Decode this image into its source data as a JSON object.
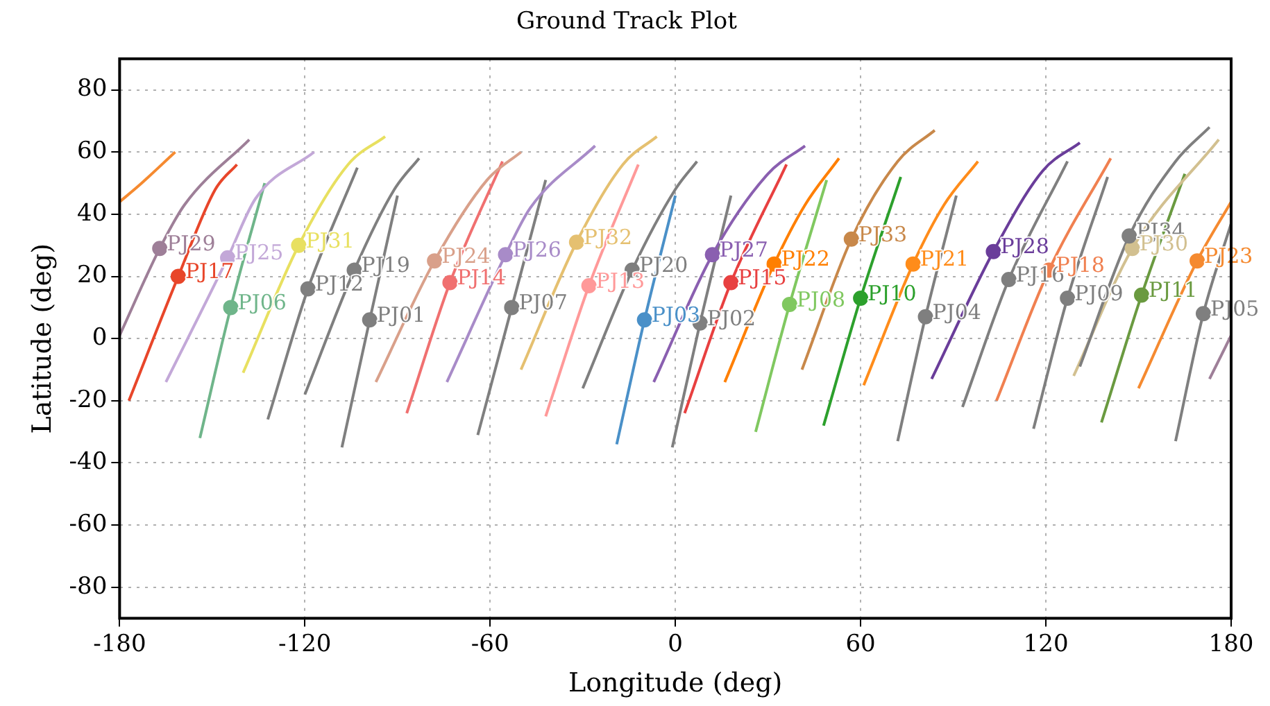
{
  "chart_data": {
    "type": "line",
    "title": "Ground Track Plot",
    "xlabel": "Longitude (deg)",
    "ylabel": "Latitude (deg)",
    "xlim": [
      -180,
      180
    ],
    "xticks": [
      -180,
      -120,
      -60,
      0,
      60,
      120,
      180
    ],
    "ylim": [
      -90,
      90
    ],
    "yticks": [
      -80,
      -60,
      -40,
      -20,
      0,
      20,
      40,
      60,
      80
    ],
    "grid": true,
    "series": [
      {
        "color": "#f58a30",
        "x": [
          -180,
          -174,
          -162
        ],
        "values": [
          44,
          49,
          60
        ]
      },
      {
        "color": "#9e7f98",
        "x": [
          173,
          180
        ],
        "values": [
          -13,
          1
        ]
      },
      {
        "color": "#9e7f98",
        "x": [
          -180,
          -167,
          -159,
          -138
        ],
        "values": [
          1,
          29,
          43,
          64
        ]
      },
      {
        "color": "#e8462a",
        "x": [
          -177,
          -161,
          -149,
          -142
        ],
        "values": [
          -20,
          20,
          48,
          56
        ]
      },
      {
        "color": "#c3a8d8",
        "x": [
          -165,
          -145,
          -136,
          -117
        ],
        "values": [
          -14,
          26,
          45,
          60
        ]
      },
      {
        "color": "#6fb58a",
        "x": [
          -154,
          -144,
          -133
        ],
        "values": [
          -32,
          10,
          50
        ]
      },
      {
        "color": "#e8e060",
        "x": [
          -140,
          -122,
          -106,
          -94
        ],
        "values": [
          -11,
          30,
          56,
          65
        ]
      },
      {
        "color": "#7f7f7f",
        "x": [
          -132,
          -119,
          -103
        ],
        "values": [
          -26,
          16,
          55
        ]
      },
      {
        "color": "#7f7f7f",
        "x": [
          -120,
          -104,
          -91,
          -83
        ],
        "values": [
          -18,
          22,
          48,
          58
        ]
      },
      {
        "color": "#7f7f7f",
        "x": [
          -108,
          -99,
          -90
        ],
        "values": [
          -35,
          6,
          46
        ]
      },
      {
        "color": "#d9a08a",
        "x": [
          -97,
          -78,
          -61,
          -50
        ],
        "values": [
          -14,
          25,
          51,
          60
        ]
      },
      {
        "color": "#f07070",
        "x": [
          -87,
          -73,
          -56
        ],
        "values": [
          -24,
          18,
          57
        ]
      },
      {
        "color": "#a88bc8",
        "x": [
          -74,
          -55,
          -47,
          -26
        ],
        "values": [
          -14,
          27,
          42,
          62
        ]
      },
      {
        "color": "#7f7f7f",
        "x": [
          -64,
          -53,
          -42
        ],
        "values": [
          -31,
          10,
          51
        ]
      },
      {
        "color": "#e5c070",
        "x": [
          -50,
          -32,
          -17,
          -6
        ],
        "values": [
          -10,
          31,
          56,
          65
        ]
      },
      {
        "color": "#ff9999",
        "x": [
          -42,
          -28,
          -12
        ],
        "values": [
          -25,
          17,
          56
        ]
      },
      {
        "color": "#7f7f7f",
        "x": [
          -30,
          -14,
          0,
          7
        ],
        "values": [
          -16,
          22,
          48,
          57
        ]
      },
      {
        "color": "#4a90c8",
        "x": [
          -19,
          -10,
          0
        ],
        "values": [
          -34,
          6,
          46
        ]
      },
      {
        "color": "#8a5fb0",
        "x": [
          -7,
          12,
          30,
          42
        ],
        "values": [
          -14,
          27,
          53,
          62
        ]
      },
      {
        "color": "#7f7f7f",
        "x": [
          -1,
          8,
          18
        ],
        "values": [
          -35,
          5,
          46
        ]
      },
      {
        "color": "#e84040",
        "x": [
          3,
          18,
          36
        ],
        "values": [
          -24,
          18,
          56
        ]
      },
      {
        "color": "#ff7f00",
        "x": [
          16,
          32,
          42,
          53
        ],
        "values": [
          -14,
          24,
          43,
          58
        ]
      },
      {
        "color": "#80c860",
        "x": [
          26,
          37,
          49
        ],
        "values": [
          -30,
          11,
          51
        ]
      },
      {
        "color": "#c8884a",
        "x": [
          41,
          57,
          72,
          84
        ],
        "values": [
          -10,
          32,
          57,
          67
        ]
      },
      {
        "color": "#2ca02c",
        "x": [
          48,
          60,
          73
        ],
        "values": [
          -28,
          13,
          52
        ]
      },
      {
        "color": "#ff8c1a",
        "x": [
          61,
          77,
          87,
          98
        ],
        "values": [
          -15,
          24,
          43,
          57
        ]
      },
      {
        "color": "#7f7f7f",
        "x": [
          72,
          81,
          91
        ],
        "values": [
          -33,
          7,
          46
        ]
      },
      {
        "color": "#6a3d9a",
        "x": [
          83,
          103,
          119,
          131
        ],
        "values": [
          -13,
          28,
          54,
          63
        ]
      },
      {
        "color": "#7f7f7f",
        "x": [
          93,
          108,
          127
        ],
        "values": [
          -22,
          19,
          57
        ]
      },
      {
        "color": "#f08050",
        "x": [
          104,
          121,
          141
        ],
        "values": [
          -20,
          22,
          58
        ]
      },
      {
        "color": "#7f7f7f",
        "x": [
          116,
          127,
          140
        ],
        "values": [
          -29,
          13,
          52
        ]
      },
      {
        "color": "#7f7f7f",
        "x": [
          131,
          147,
          162,
          173
        ],
        "values": [
          -9,
          33,
          57,
          68
        ]
      },
      {
        "color": "#d2c090",
        "x": [
          129,
          148,
          176
        ],
        "values": [
          -12,
          29,
          64
        ]
      },
      {
        "color": "#6a9a40",
        "x": [
          138,
          151,
          165
        ],
        "values": [
          -27,
          14,
          53
        ]
      },
      {
        "color": "#f58a30",
        "x": [
          150,
          169,
          180
        ],
        "values": [
          -16,
          25,
          44
        ]
      },
      {
        "color": "#7f7f7f",
        "x": [
          162,
          171,
          180
        ],
        "values": [
          -33,
          8,
          37
        ]
      },
      {
        "type": "scatter",
        "name": "PJ29",
        "color": "#9e7f98",
        "x": [
          -167
        ],
        "values": [
          29
        ]
      },
      {
        "type": "scatter",
        "name": "PJ17",
        "color": "#e8462a",
        "x": [
          -161
        ],
        "values": [
          20
        ]
      },
      {
        "type": "scatter",
        "name": "PJ25",
        "color": "#c3a8d8",
        "x": [
          -145
        ],
        "values": [
          26
        ]
      },
      {
        "type": "scatter",
        "name": "PJ06",
        "color": "#6fb58a",
        "x": [
          -144
        ],
        "values": [
          10
        ]
      },
      {
        "type": "scatter",
        "name": "PJ31",
        "color": "#e8e060",
        "x": [
          -122
        ],
        "values": [
          30
        ]
      },
      {
        "type": "scatter",
        "name": "PJ12",
        "color": "#7f7f7f",
        "x": [
          -119
        ],
        "values": [
          16
        ]
      },
      {
        "type": "scatter",
        "name": "PJ19",
        "color": "#7f7f7f",
        "x": [
          -104
        ],
        "values": [
          22
        ]
      },
      {
        "type": "scatter",
        "name": "PJ01",
        "color": "#7f7f7f",
        "x": [
          -99
        ],
        "values": [
          6
        ]
      },
      {
        "type": "scatter",
        "name": "PJ24",
        "color": "#d9a08a",
        "x": [
          -78
        ],
        "values": [
          25
        ]
      },
      {
        "type": "scatter",
        "name": "PJ14",
        "color": "#f07070",
        "x": [
          -73
        ],
        "values": [
          18
        ]
      },
      {
        "type": "scatter",
        "name": "PJ26",
        "color": "#a88bc8",
        "x": [
          -55
        ],
        "values": [
          27
        ]
      },
      {
        "type": "scatter",
        "name": "PJ07",
        "color": "#7f7f7f",
        "x": [
          -53
        ],
        "values": [
          10
        ]
      },
      {
        "type": "scatter",
        "name": "PJ32",
        "color": "#e5c070",
        "x": [
          -32
        ],
        "values": [
          31
        ]
      },
      {
        "type": "scatter",
        "name": "PJ13",
        "color": "#ff9999",
        "x": [
          -28
        ],
        "values": [
          17
        ]
      },
      {
        "type": "scatter",
        "name": "PJ20",
        "color": "#7f7f7f",
        "x": [
          -14
        ],
        "values": [
          22
        ]
      },
      {
        "type": "scatter",
        "name": "PJ03",
        "color": "#4a90c8",
        "x": [
          -10
        ],
        "values": [
          6
        ]
      },
      {
        "type": "scatter",
        "name": "PJ27",
        "color": "#8a5fb0",
        "x": [
          12
        ],
        "values": [
          27
        ]
      },
      {
        "type": "scatter",
        "name": "PJ02",
        "color": "#7f7f7f",
        "x": [
          8
        ],
        "values": [
          5
        ]
      },
      {
        "type": "scatter",
        "name": "PJ15",
        "color": "#e84040",
        "x": [
          18
        ],
        "values": [
          18
        ]
      },
      {
        "type": "scatter",
        "name": "PJ22",
        "color": "#ff7f00",
        "x": [
          32
        ],
        "values": [
          24
        ]
      },
      {
        "type": "scatter",
        "name": "PJ08",
        "color": "#80c860",
        "x": [
          37
        ],
        "values": [
          11
        ]
      },
      {
        "type": "scatter",
        "name": "PJ33",
        "color": "#c8884a",
        "x": [
          57
        ],
        "values": [
          32
        ]
      },
      {
        "type": "scatter",
        "name": "PJ10",
        "color": "#2ca02c",
        "x": [
          60
        ],
        "values": [
          13
        ]
      },
      {
        "type": "scatter",
        "name": "PJ21",
        "color": "#ff8c1a",
        "x": [
          77
        ],
        "values": [
          24
        ]
      },
      {
        "type": "scatter",
        "name": "PJ04",
        "color": "#7f7f7f",
        "x": [
          81
        ],
        "values": [
          7
        ]
      },
      {
        "type": "scatter",
        "name": "PJ28",
        "color": "#6a3d9a",
        "x": [
          103
        ],
        "values": [
          28
        ]
      },
      {
        "type": "scatter",
        "name": "PJ16",
        "color": "#7f7f7f",
        "x": [
          108
        ],
        "values": [
          19
        ]
      },
      {
        "type": "scatter",
        "name": "PJ18",
        "color": "#f08050",
        "x": [
          121
        ],
        "values": [
          22
        ]
      },
      {
        "type": "scatter",
        "name": "PJ09",
        "color": "#7f7f7f",
        "x": [
          127
        ],
        "values": [
          13
        ]
      },
      {
        "type": "scatter",
        "name": "PJ34",
        "color": "#7f7f7f",
        "x": [
          147
        ],
        "values": [
          33
        ]
      },
      {
        "type": "scatter",
        "name": "PJ30",
        "color": "#d2c090",
        "x": [
          148
        ],
        "values": [
          29
        ]
      },
      {
        "type": "scatter",
        "name": "PJ11",
        "color": "#6a9a40",
        "x": [
          151
        ],
        "values": [
          14
        ]
      },
      {
        "type": "scatter",
        "name": "PJ23",
        "color": "#f58a30",
        "x": [
          169
        ],
        "values": [
          25
        ]
      },
      {
        "type": "scatter",
        "name": "PJ05",
        "color": "#7f7f7f",
        "x": [
          171
        ],
        "values": [
          8
        ]
      }
    ]
  }
}
